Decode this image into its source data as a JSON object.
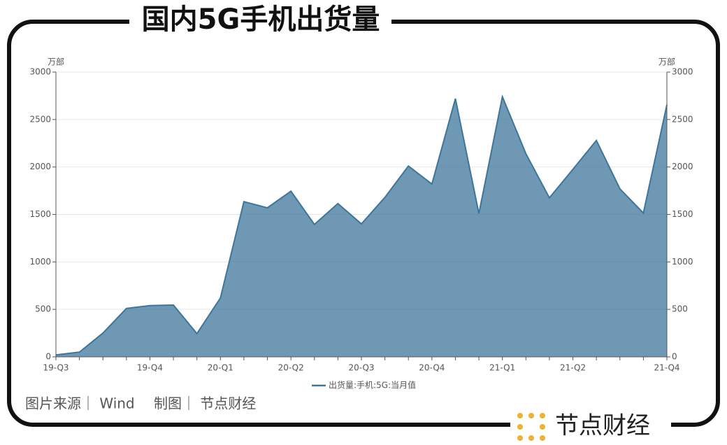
{
  "chart_data": {
    "type": "area",
    "title": "国内5G手机出货量",
    "y_label": "万部",
    "y2_label": "万部",
    "categories": [
      "19-Q3",
      null,
      null,
      null,
      "19-Q4",
      null,
      null,
      "20-Q1",
      null,
      null,
      "20-Q2",
      null,
      null,
      "20-Q3",
      null,
      null,
      "20-Q4",
      null,
      null,
      "21-Q1",
      null,
      null,
      "21-Q2",
      null,
      null,
      null,
      "21-Q4"
    ],
    "series": [
      {
        "name": "出货量:手机:5G:当月值",
        "color": "#3d7699",
        "values": [
          20,
          50,
          250,
          510,
          540,
          545,
          245,
          620,
          1635,
          1570,
          1745,
          1395,
          1615,
          1400,
          1680,
          2010,
          1820,
          2720,
          1510,
          2740,
          2140,
          1675,
          1975,
          2280,
          1770,
          1515,
          2655
        ]
      }
    ],
    "ylim": [
      0,
      3000
    ],
    "yticks": [
      0,
      500,
      1000,
      1500,
      2000,
      2500,
      3000
    ],
    "y2lim": [
      0,
      3000
    ],
    "y2ticks": [
      0,
      500,
      1000,
      1500,
      2000,
      2500,
      3000
    ],
    "grid": true,
    "legend": "bottom"
  },
  "footer": {
    "source": "图片来源｜ Wind",
    "credit": "制图｜ 节点财经"
  },
  "logo": "节点财经"
}
